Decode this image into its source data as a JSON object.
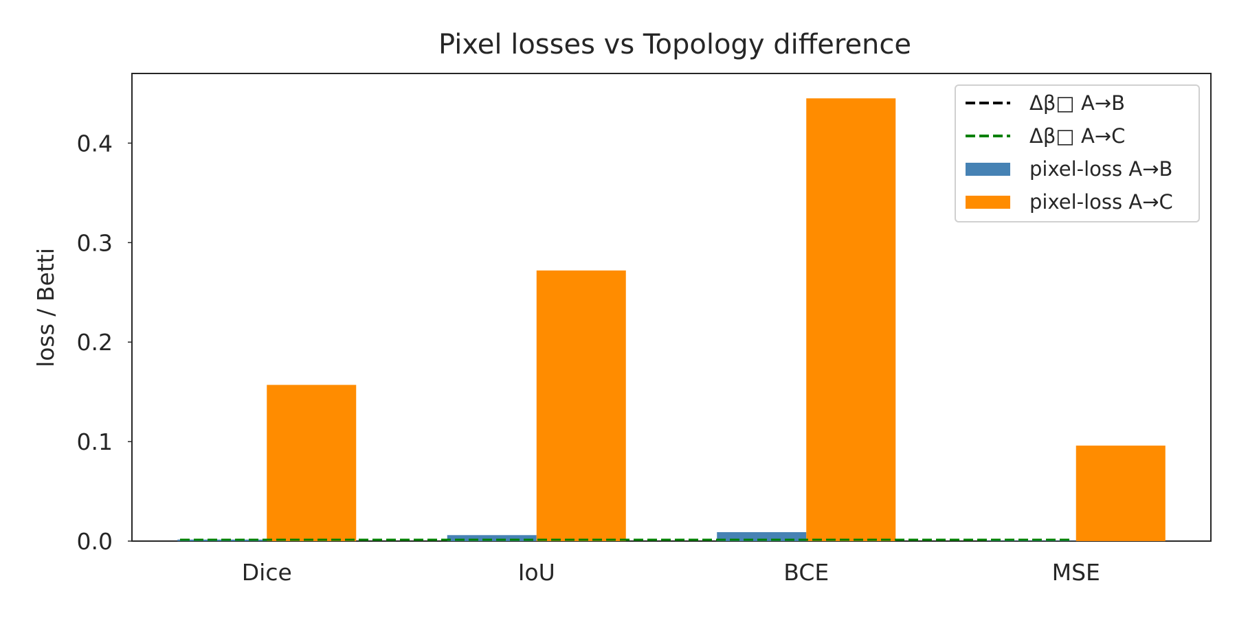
{
  "chart_data": {
    "type": "bar",
    "title": "Pixel losses vs Topology difference",
    "xlabel": "",
    "ylabel": "loss / Betti",
    "categories": [
      "Dice",
      "IoU",
      "BCE",
      "MSE"
    ],
    "ylim": [
      0,
      0.47
    ],
    "yticks": [
      0.0,
      0.1,
      0.2,
      0.3,
      0.4
    ],
    "ytick_labels": [
      "0.0",
      "0.1",
      "0.2",
      "0.3",
      "0.4"
    ],
    "grid": false,
    "legend_position": "top-right",
    "series": [
      {
        "name": "pixel-loss  A→B",
        "kind": "bar",
        "color": "#4682b4",
        "values": [
          0.0015,
          0.006,
          0.009,
          0.0003
        ]
      },
      {
        "name": "pixel-loss  A→C",
        "kind": "bar",
        "color": "#ff8c00",
        "values": [
          0.157,
          0.272,
          0.445,
          0.096
        ]
      },
      {
        "name": "Δβ□  A→B",
        "kind": "hline",
        "color": "#000000",
        "value": 0.0
      },
      {
        "name": "Δβ□  A→C",
        "kind": "hline",
        "color": "#008000",
        "value": 0.0
      }
    ]
  }
}
